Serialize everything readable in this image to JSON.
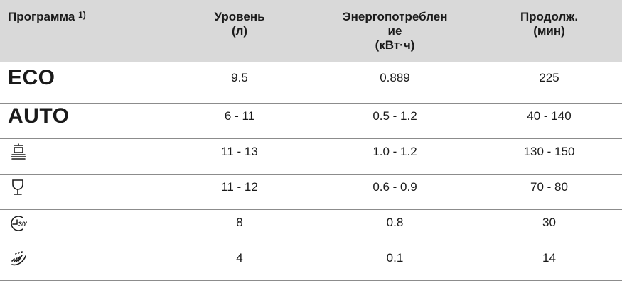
{
  "header": {
    "program": "Программа",
    "program_note": "1)",
    "level_line1": "Уровень",
    "level_line2": "(л)",
    "energy_line1": "Энергопотреблен",
    "energy_line2": "ие",
    "energy_line3": "(кВт·ч)",
    "duration_line1": "Продолж.",
    "duration_line2": "(мин)"
  },
  "rows": [
    {
      "program": "ECO",
      "icon": null,
      "level": "9.5",
      "energy": "0.889",
      "duration": "225"
    },
    {
      "program": "AUTO",
      "icon": null,
      "level": "6 - 11",
      "energy": "0.5 - 1.2",
      "duration": "40 - 140"
    },
    {
      "program": "",
      "icon": "pots-pans-icon",
      "level": "11 - 13",
      "energy": "1.0 - 1.2",
      "duration": "130 - 150"
    },
    {
      "program": "",
      "icon": "glass-icon",
      "level": "11 - 12",
      "energy": "0.6 - 0.9",
      "duration": "70 - 80"
    },
    {
      "program": "",
      "icon": "timer-30-icon",
      "level": "8",
      "energy": "0.8",
      "duration": "30"
    },
    {
      "program": "",
      "icon": "rinse-spray-icon",
      "level": "4",
      "energy": "0.1",
      "duration": "14"
    }
  ],
  "colors": {
    "header_bg": "#d9d9d9",
    "rule": "#8c8c8c",
    "text": "#1a1a1a"
  }
}
